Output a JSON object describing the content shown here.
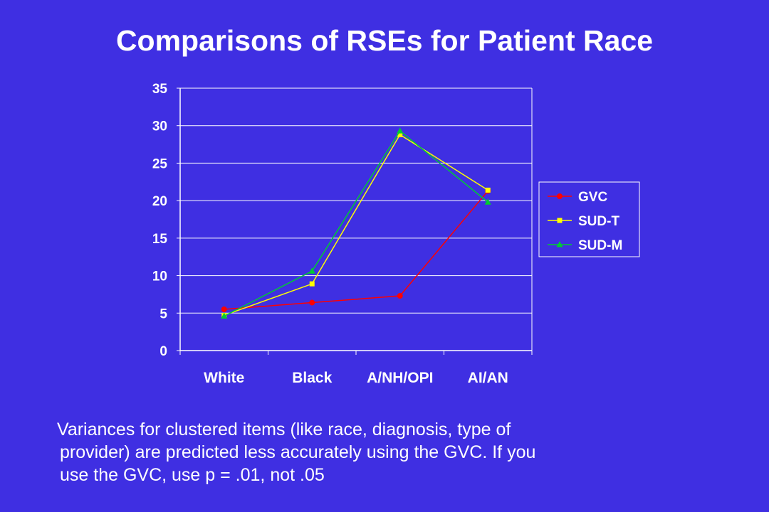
{
  "slide": {
    "title": "Comparisons of RSEs for Patient Race",
    "caption_lines": [
      "Variances for clustered items (like race, diagnosis, type of",
      "provider) are predicted less accurately using the GVC.  If you",
      "use the GVC, use p = .01, not .05"
    ]
  },
  "chart_data": {
    "type": "line",
    "title": "",
    "xlabel": "",
    "ylabel": "",
    "categories": [
      "White",
      "Black",
      "A/NH/OPI",
      "AI/AN"
    ],
    "ylim": [
      0,
      35
    ],
    "yticks": [
      0,
      5,
      10,
      15,
      20,
      25,
      30,
      35
    ],
    "grid": "horizontal",
    "legend_position": "right",
    "series": [
      {
        "name": "GVC",
        "values": [
          5.5,
          6.4,
          7.3,
          21.3
        ],
        "color": "#ff0000",
        "marker": "circle"
      },
      {
        "name": "SUD-T",
        "values": [
          4.7,
          8.9,
          28.8,
          21.4
        ],
        "color": "#ffff00",
        "marker": "square"
      },
      {
        "name": "SUD-M",
        "values": [
          4.6,
          10.6,
          29.3,
          19.8
        ],
        "color": "#00cc33",
        "marker": "triangle"
      }
    ]
  }
}
